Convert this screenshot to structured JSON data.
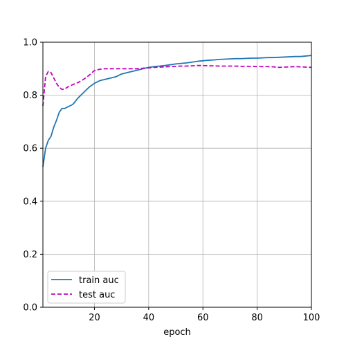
{
  "chart_data": {
    "type": "line",
    "title": "",
    "xlabel": "epoch",
    "ylabel": "",
    "xlim": [
      1,
      100
    ],
    "ylim": [
      0.0,
      1.0
    ],
    "grid": true,
    "legend_position": "lower-left",
    "x_ticks": [
      20,
      40,
      60,
      80,
      100
    ],
    "x_tick_labels": [
      "20",
      "40",
      "60",
      "80",
      "100"
    ],
    "y_ticks": [
      0.0,
      0.2,
      0.4,
      0.6,
      0.8,
      1.0
    ],
    "y_tick_labels": [
      "0.0",
      "0.2",
      "0.4",
      "0.6",
      "0.8",
      "1.0"
    ],
    "series": [
      {
        "name": "train auc",
        "color": "#1f77b4",
        "dash": "solid",
        "x": [
          1,
          2,
          3,
          4,
          5,
          6,
          7,
          8,
          9,
          10,
          12,
          14,
          16,
          18,
          20,
          22,
          24,
          26,
          28,
          30,
          32,
          34,
          36,
          38,
          40,
          42,
          44,
          46,
          48,
          50,
          52,
          54,
          56,
          58,
          60,
          62,
          64,
          66,
          68,
          70,
          72,
          74,
          76,
          78,
          80,
          82,
          84,
          86,
          88,
          90,
          92,
          94,
          96,
          98,
          100
        ],
        "values": [
          0.53,
          0.6,
          0.63,
          0.645,
          0.68,
          0.705,
          0.735,
          0.75,
          0.75,
          0.755,
          0.765,
          0.79,
          0.81,
          0.83,
          0.845,
          0.855,
          0.86,
          0.865,
          0.87,
          0.88,
          0.885,
          0.89,
          0.895,
          0.9,
          0.905,
          0.908,
          0.91,
          0.912,
          0.915,
          0.918,
          0.92,
          0.922,
          0.925,
          0.928,
          0.93,
          0.932,
          0.933,
          0.935,
          0.936,
          0.937,
          0.938,
          0.938,
          0.939,
          0.94,
          0.94,
          0.941,
          0.942,
          0.942,
          0.943,
          0.944,
          0.945,
          0.946,
          0.946,
          0.948,
          0.95
        ]
      },
      {
        "name": "test auc",
        "color": "#bf00bf",
        "dash": "dashed",
        "x": [
          1,
          2,
          3,
          4,
          5,
          6,
          7,
          8,
          9,
          10,
          12,
          14,
          16,
          18,
          20,
          22,
          24,
          26,
          28,
          30,
          32,
          34,
          36,
          38,
          40,
          42,
          44,
          46,
          48,
          50,
          52,
          54,
          56,
          58,
          60,
          62,
          64,
          66,
          68,
          70,
          72,
          74,
          76,
          78,
          80,
          82,
          84,
          86,
          88,
          90,
          92,
          94,
          96,
          98,
          100
        ],
        "values": [
          0.76,
          0.87,
          0.89,
          0.885,
          0.865,
          0.845,
          0.83,
          0.822,
          0.823,
          0.83,
          0.84,
          0.848,
          0.86,
          0.875,
          0.893,
          0.898,
          0.9,
          0.9,
          0.9,
          0.9,
          0.9,
          0.9,
          0.9,
          0.902,
          0.903,
          0.905,
          0.906,
          0.907,
          0.908,
          0.909,
          0.91,
          0.91,
          0.911,
          0.912,
          0.912,
          0.911,
          0.911,
          0.91,
          0.91,
          0.91,
          0.91,
          0.909,
          0.909,
          0.909,
          0.908,
          0.908,
          0.908,
          0.907,
          0.905,
          0.906,
          0.907,
          0.908,
          0.907,
          0.906,
          0.905
        ]
      }
    ]
  }
}
